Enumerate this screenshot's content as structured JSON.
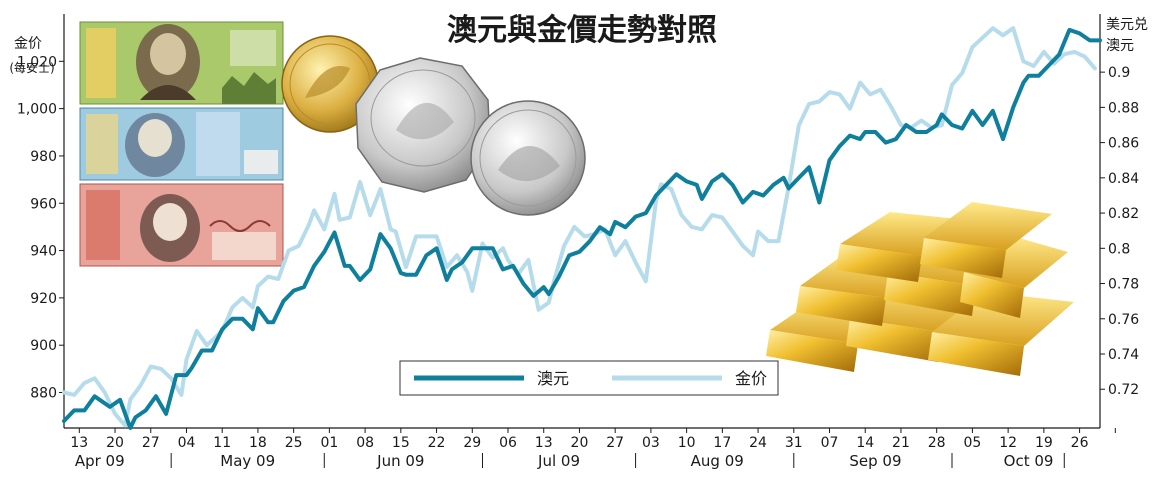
{
  "chart_data": {
    "type": "line",
    "title": "澳元與金價走勢對照",
    "left_axis": {
      "label": "金价",
      "sublabel": "(每安士)",
      "ylim": [
        865,
        1040
      ],
      "ticks": [
        880,
        900,
        920,
        940,
        960,
        980,
        1000,
        1020
      ],
      "tick_labels": [
        "880",
        "900",
        "920",
        "940",
        "960",
        "980",
        "1,000",
        "1,020"
      ]
    },
    "right_axis": {
      "label_line1": "美元兑",
      "label_line2": "澳元",
      "ylim": [
        0.698,
        0.933
      ],
      "ticks": [
        0.72,
        0.74,
        0.76,
        0.78,
        0.8,
        0.82,
        0.84,
        0.86,
        0.88,
        0.9
      ],
      "tick_labels": [
        "0.72",
        "0.74",
        "0.76",
        "0.78",
        "0.8",
        "0.82",
        "0.84",
        "0.86",
        "0.88",
        "0.9"
      ]
    },
    "x_day_range": [
      0,
      203
    ],
    "x_tick_days": [
      3,
      10,
      17,
      24,
      31,
      38,
      45,
      52,
      59,
      66,
      73,
      80,
      87,
      94,
      101,
      108,
      115,
      122,
      129,
      136,
      143,
      150,
      157,
      164,
      171,
      178,
      185,
      192,
      199,
      206
    ],
    "x_tick_labels": [
      "13",
      "20",
      "27",
      "04",
      "11",
      "18",
      "25",
      "01",
      "08",
      "15",
      "22",
      "29",
      "06",
      "13",
      "20",
      "27",
      "03",
      "10",
      "17",
      "24",
      "31",
      "07",
      "14",
      "21",
      "28",
      "05",
      "12",
      "19",
      "26"
    ],
    "month_separator_days": [
      21,
      51,
      82,
      112,
      143,
      174,
      196
    ],
    "months": [
      {
        "label": "Apr 09",
        "day": 7
      },
      {
        "label": "May 09",
        "day": 36
      },
      {
        "label": "Jun 09",
        "day": 66
      },
      {
        "label": "Jul 09",
        "day": 97
      },
      {
        "label": "Aug 09",
        "day": 128
      },
      {
        "label": "Sep 09",
        "day": 159
      },
      {
        "label": "Oct 09",
        "day": 189
      }
    ],
    "series": [
      {
        "name": "澳元",
        "axis": "right",
        "color": "#0e7f9c",
        "days": [
          0,
          2,
          4,
          6,
          7,
          9,
          11,
          13,
          14,
          16,
          18,
          20,
          22,
          24,
          25,
          27,
          29,
          31,
          33,
          35,
          37,
          38,
          40,
          41,
          43,
          45,
          47,
          49,
          51,
          53,
          55,
          56,
          58,
          60,
          62,
          64,
          66,
          67,
          69,
          71,
          73,
          75,
          76,
          78,
          80,
          82,
          84,
          86,
          88,
          90,
          92,
          94,
          95,
          97,
          99,
          101,
          103,
          105,
          107,
          108,
          110,
          112,
          114,
          116,
          118,
          120,
          122,
          124,
          125,
          127,
          129,
          131,
          133,
          135,
          137,
          139,
          141,
          142,
          144,
          146,
          148,
          150,
          152,
          154,
          156,
          157,
          159,
          161,
          163,
          165,
          167,
          169,
          171,
          172,
          174,
          176,
          178,
          180,
          182,
          184,
          186,
          188,
          189,
          191,
          193,
          195,
          197,
          199,
          201,
          203
        ],
        "values": [
          0.702,
          0.708,
          0.708,
          0.716,
          0.714,
          0.71,
          0.714,
          0.698,
          0.704,
          0.708,
          0.716,
          0.706,
          0.728,
          0.728,
          0.732,
          0.742,
          0.742,
          0.754,
          0.76,
          0.76,
          0.754,
          0.766,
          0.758,
          0.758,
          0.77,
          0.776,
          0.778,
          0.79,
          0.798,
          0.809,
          0.79,
          0.79,
          0.782,
          0.788,
          0.808,
          0.8,
          0.786,
          0.785,
          0.785,
          0.796,
          0.8,
          0.782,
          0.788,
          0.792,
          0.8,
          0.8,
          0.8,
          0.788,
          0.79,
          0.78,
          0.773,
          0.778,
          0.774,
          0.784,
          0.796,
          0.798,
          0.804,
          0.812,
          0.808,
          0.815,
          0.812,
          0.818,
          0.82,
          0.83,
          0.836,
          0.842,
          0.838,
          0.836,
          0.828,
          0.838,
          0.842,
          0.836,
          0.826,
          0.832,
          0.83,
          0.836,
          0.84,
          0.834,
          0.84,
          0.846,
          0.826,
          0.85,
          0.858,
          0.864,
          0.862,
          0.866,
          0.866,
          0.86,
          0.862,
          0.87,
          0.866,
          0.866,
          0.87,
          0.876,
          0.87,
          0.868,
          0.878,
          0.87,
          0.878,
          0.862,
          0.88,
          0.894,
          0.898,
          0.898,
          0.904,
          0.91,
          0.924,
          0.922,
          0.918,
          0.918
        ]
      },
      {
        "name": "金价",
        "axis": "left",
        "color": "#b6dcec",
        "days": [
          0,
          2,
          4,
          6,
          8,
          10,
          12,
          13,
          15,
          17,
          19,
          21,
          23,
          24,
          26,
          28,
          29,
          31,
          33,
          35,
          37,
          38,
          40,
          42,
          44,
          46,
          48,
          49,
          51,
          53,
          54,
          56,
          58,
          60,
          62,
          64,
          65,
          67,
          69,
          71,
          73,
          75,
          77,
          79,
          80,
          82,
          84,
          86,
          87,
          89,
          91,
          93,
          95,
          96,
          98,
          100,
          102,
          104,
          106,
          108,
          110,
          112,
          114,
          116,
          117,
          119,
          121,
          123,
          125,
          127,
          129,
          131,
          133,
          135,
          136,
          138,
          140,
          142,
          144,
          146,
          148,
          150,
          152,
          154,
          156,
          158,
          160,
          162,
          164,
          166,
          168,
          170,
          172,
          174,
          176,
          178,
          180,
          182,
          184,
          186,
          188,
          190,
          192,
          194,
          196,
          198,
          200,
          202
        ],
        "values": [
          880,
          879,
          884,
          886,
          880,
          871,
          866,
          877,
          883,
          891,
          890,
          886,
          879,
          894,
          906,
          900,
          902,
          906,
          916,
          920,
          916,
          925,
          929,
          928,
          940,
          942,
          951,
          957,
          949,
          964,
          953,
          954,
          969,
          955,
          966,
          949,
          948,
          933,
          946,
          946,
          946,
          933,
          938,
          931,
          923,
          943,
          937,
          941,
          936,
          930,
          936,
          915,
          918,
          927,
          942,
          950,
          946,
          947,
          949,
          938,
          944,
          935,
          927,
          961,
          968,
          966,
          955,
          950,
          949,
          955,
          954,
          948,
          942,
          938,
          948,
          944,
          944,
          967,
          993,
          1002,
          1003,
          1007,
          1006,
          1000,
          1011,
          1006,
          1008,
          1001,
          993,
          992,
          995,
          992,
          993,
          1010,
          1015,
          1026,
          1030,
          1034,
          1031,
          1034,
          1020,
          1018,
          1024,
          1019,
          1023,
          1024,
          1022,
          1017
        ]
      }
    ],
    "legend": {
      "position": "bottom-center"
    },
    "grid": false
  }
}
